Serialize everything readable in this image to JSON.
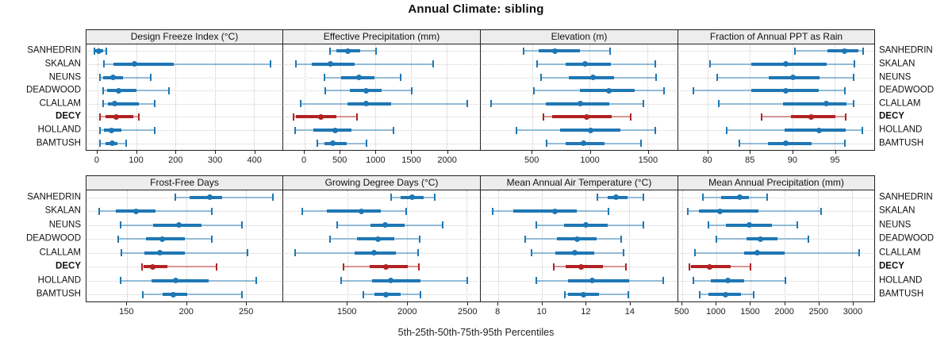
{
  "title": "Annual Climate: sibling",
  "footer": "5th-25th-50th-75th-95th Percentiles",
  "stations": [
    "SANHEDRIN",
    "SKALAN",
    "NEUNS",
    "DEADWOOD",
    "CLALLAM",
    "DECY",
    "HOLLAND",
    "BAMTUSH"
  ],
  "highlight_station": "DECY",
  "colors": {
    "normal": "#1f77b4",
    "normal_light": "rgba(31,119,180,0.45)",
    "highlight": "#b22222",
    "highlight_light": "rgba(178,34,34,0.45)",
    "panel_header_bg": "#ededed",
    "panel_border": "#222222",
    "grid": "#c9c9c9"
  },
  "chart_data": {
    "type": "dotplot-percentiles",
    "percentile_labels": [
      "5th",
      "25th",
      "50th",
      "75th",
      "95th"
    ],
    "legend_position": "bottom",
    "grid": "dotted",
    "panels": [
      {
        "title": "Design Freeze Index (°C)",
        "row": 0,
        "col": 0,
        "xmin": -28,
        "xmax": 473,
        "ticks": [
          0,
          100,
          200,
          300,
          400
        ],
        "values": {
          "SANHEDRIN": [
            -10,
            -5,
            3,
            14,
            20
          ],
          "SKALAN": [
            15,
            40,
            95,
            195,
            440
          ],
          "NEUNS": [
            5,
            15,
            40,
            65,
            135
          ],
          "DEADWOOD": [
            13,
            25,
            55,
            100,
            180
          ],
          "CLALLAM": [
            12,
            27,
            45,
            105,
            145
          ],
          "DECY": [
            5,
            20,
            49,
            91,
            104
          ],
          "HOLLAND": [
            5,
            17,
            36,
            61,
            145
          ],
          "BAMTUSH": [
            5,
            20,
            37,
            51,
            72
          ]
        }
      },
      {
        "title": "Effective Precipitation (mm)",
        "row": 0,
        "col": 1,
        "xmin": -300,
        "xmax": 2470,
        "ticks": [
          0,
          500,
          1000,
          1500,
          2000
        ],
        "values": {
          "SANHEDRIN": [
            350,
            450,
            610,
            780,
            1000
          ],
          "SKALAN": [
            -130,
            100,
            370,
            700,
            1800
          ],
          "NEUNS": [
            265,
            520,
            770,
            990,
            1340
          ],
          "DEADWOOD": [
            285,
            640,
            870,
            1080,
            1500
          ],
          "CLALLAM": [
            -65,
            600,
            870,
            1220,
            2280
          ],
          "DECY": [
            -170,
            -120,
            230,
            450,
            730
          ],
          "HOLLAND": [
            -140,
            120,
            430,
            660,
            1240
          ],
          "BAMTUSH": [
            165,
            280,
            400,
            590,
            860
          ]
        }
      },
      {
        "title": "Elevation (m)",
        "row": 0,
        "col": 2,
        "xmin": 55,
        "xmax": 1760,
        "ticks": [
          500,
          1000,
          1500
        ],
        "values": {
          "SANHEDRIN": [
            420,
            560,
            700,
            915,
            1170
          ],
          "SKALAN": [
            535,
            790,
            960,
            1180,
            1560
          ],
          "NEUNS": [
            570,
            815,
            1025,
            1210,
            1565
          ],
          "DEADWOOD": [
            510,
            915,
            1165,
            1390,
            1635
          ],
          "CLALLAM": [
            140,
            620,
            920,
            1170,
            1455
          ],
          "DECY": [
            590,
            675,
            975,
            1190,
            1345
          ],
          "HOLLAND": [
            360,
            745,
            1005,
            1265,
            1560
          ],
          "BAMTUSH": [
            620,
            790,
            945,
            1130,
            1435
          ]
        }
      },
      {
        "title": "Fraction of Annual PPT as Rain",
        "row": 0,
        "col": 3,
        "xmin": 76.5,
        "xmax": 99.7,
        "ticks": [
          80,
          85,
          90,
          95
        ],
        "values": {
          "SANHEDRIN": [
            90.2,
            94.2,
            96.2,
            97.8,
            98.3
          ],
          "SKALAN": [
            80.2,
            85.1,
            89.2,
            94.1,
            97.3
          ],
          "NEUNS": [
            81.0,
            87.2,
            90.1,
            93.2,
            97.2
          ],
          "DEADWOOD": [
            78.2,
            85.1,
            89.2,
            93.1,
            96.1
          ],
          "CLALLAM": [
            81.2,
            88.9,
            94.0,
            96.4,
            97.2
          ],
          "DECY": [
            86.3,
            89.8,
            92.2,
            95.1,
            96.2
          ],
          "HOLLAND": [
            82.1,
            89.1,
            93.2,
            96.3,
            98.2
          ],
          "BAMTUSH": [
            83.6,
            87.1,
            89.2,
            92.3,
            96.1
          ]
        }
      },
      {
        "title": "Frost-Free Days",
        "row": 1,
        "col": 0,
        "xmin": 116,
        "xmax": 281,
        "ticks": [
          150,
          200,
          250
        ],
        "values": {
          "SANHEDRIN": [
            190,
            203,
            220,
            230,
            272
          ],
          "SKALAN": [
            126,
            141,
            158,
            174,
            221
          ],
          "NEUNS": [
            144,
            172,
            194,
            213,
            246
          ],
          "DEADWOOD": [
            142,
            166,
            180,
            199,
            221
          ],
          "CLALLAM": [
            145,
            165,
            178,
            199,
            251
          ],
          "DECY": [
            162,
            164,
            172,
            184,
            225
          ],
          "HOLLAND": [
            144,
            171,
            191,
            219,
            258
          ],
          "BAMTUSH": [
            163,
            180,
            189,
            201,
            246
          ]
        }
      },
      {
        "title": "Growing Degree Days (°C)",
        "row": 1,
        "col": 1,
        "xmin": 965,
        "xmax": 2610,
        "ticks": [
          1500,
          2000,
          2500
        ],
        "values": {
          "SANHEDRIN": [
            1860,
            1950,
            2045,
            2140,
            2225
          ],
          "SKALAN": [
            1120,
            1330,
            1620,
            1780,
            1985
          ],
          "NEUNS": [
            1410,
            1695,
            1820,
            1980,
            2290
          ],
          "DEADWOOD": [
            1350,
            1585,
            1755,
            1895,
            2100
          ],
          "CLALLAM": [
            1060,
            1560,
            1725,
            1910,
            2085
          ],
          "DECY": [
            1465,
            1685,
            1825,
            2005,
            2090
          ],
          "HOLLAND": [
            1440,
            1705,
            1865,
            2110,
            2495
          ],
          "BAMTUSH": [
            1630,
            1725,
            1825,
            1945,
            2105
          ]
        }
      },
      {
        "title": "Mean Annual Air Temperature (°C)",
        "row": 1,
        "col": 2,
        "xmin": 7.2,
        "xmax": 16.2,
        "ticks": [
          8,
          10,
          12,
          14
        ],
        "values": {
          "SANHEDRIN": [
            12.5,
            13.0,
            13.4,
            13.9,
            14.6
          ],
          "SKALAN": [
            7.7,
            8.7,
            10.6,
            11.6,
            13.0
          ],
          "NEUNS": [
            9.7,
            11.0,
            12.0,
            13.0,
            14.6
          ],
          "DEADWOOD": [
            9.2,
            10.7,
            11.6,
            12.5,
            13.6
          ],
          "CLALLAM": [
            9.5,
            10.6,
            11.5,
            12.4,
            13.7
          ],
          "DECY": [
            10.5,
            11.1,
            11.8,
            12.8,
            13.8
          ],
          "HOLLAND": [
            9.7,
            11.2,
            12.3,
            14.0,
            15.5
          ],
          "BAMTUSH": [
            11.0,
            11.2,
            11.9,
            12.6,
            13.9
          ]
        }
      },
      {
        "title": "Mean Annual Precipitation (mm)",
        "row": 1,
        "col": 3,
        "xmin": 440,
        "xmax": 3325,
        "ticks": [
          500,
          1000,
          1500,
          2000,
          2500,
          3000
        ],
        "values": {
          "SANHEDRIN": [
            790,
            1070,
            1350,
            1475,
            1735
          ],
          "SKALAN": [
            565,
            740,
            1050,
            1620,
            2535
          ],
          "NEUNS": [
            870,
            1135,
            1490,
            1815,
            2185
          ],
          "DEADWOOD": [
            990,
            1450,
            1645,
            1905,
            2340
          ],
          "CLALLAM": [
            675,
            1410,
            1605,
            2000,
            3095
          ],
          "DECY": [
            590,
            625,
            905,
            1215,
            1495
          ],
          "HOLLAND": [
            645,
            915,
            1165,
            1405,
            2000
          ],
          "BAMTUSH": [
            740,
            885,
            1130,
            1360,
            1535
          ]
        }
      }
    ]
  }
}
